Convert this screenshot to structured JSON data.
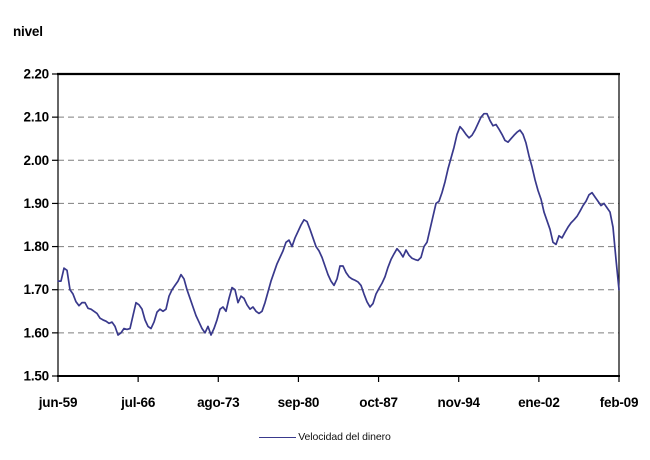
{
  "y_axis_title": "nivel",
  "legend": {
    "label": "Velocidad del dinero"
  },
  "colors": {
    "line": "#39398c",
    "grid": "#7f7f7f",
    "axis": "#000000",
    "background": "#ffffff",
    "text": "#000000"
  },
  "chart_data": {
    "type": "line",
    "title": "",
    "xlabel": "",
    "ylabel": "nivel",
    "ylim": [
      1.5,
      2.2
    ],
    "grid": "horizontal-dashed",
    "legend_position": "bottom-center",
    "x_tick_labels": [
      "jun-59",
      "jul-66",
      "ago-73",
      "sep-80",
      "oct-87",
      "nov-94",
      "ene-02",
      "feb-09"
    ],
    "y_tick_labels": [
      "1.50",
      "1.60",
      "1.70",
      "1.80",
      "1.90",
      "2.00",
      "2.10",
      "2.20"
    ],
    "y_ticks": [
      1.5,
      1.6,
      1.7,
      1.8,
      1.9,
      2.0,
      2.1,
      2.2
    ],
    "series": [
      {
        "name": "Velocidad del dinero",
        "color": "#39398c",
        "values": [
          1.72,
          1.72,
          1.75,
          1.745,
          1.7,
          1.69,
          1.672,
          1.663,
          1.67,
          1.67,
          1.657,
          1.655,
          1.65,
          1.645,
          1.634,
          1.63,
          1.627,
          1.622,
          1.625,
          1.615,
          1.595,
          1.6,
          1.61,
          1.608,
          1.61,
          1.64,
          1.67,
          1.665,
          1.655,
          1.63,
          1.615,
          1.61,
          1.625,
          1.648,
          1.655,
          1.65,
          1.655,
          1.685,
          1.7,
          1.71,
          1.72,
          1.735,
          1.725,
          1.7,
          1.68,
          1.66,
          1.64,
          1.625,
          1.61,
          1.6,
          1.615,
          1.595,
          1.61,
          1.63,
          1.655,
          1.66,
          1.65,
          1.68,
          1.705,
          1.7,
          1.67,
          1.685,
          1.68,
          1.665,
          1.655,
          1.66,
          1.65,
          1.645,
          1.65,
          1.67,
          1.695,
          1.72,
          1.74,
          1.76,
          1.775,
          1.79,
          1.81,
          1.815,
          1.8,
          1.82,
          1.835,
          1.85,
          1.862,
          1.858,
          1.84,
          1.82,
          1.8,
          1.79,
          1.775,
          1.755,
          1.735,
          1.72,
          1.71,
          1.725,
          1.755,
          1.755,
          1.74,
          1.73,
          1.725,
          1.722,
          1.718,
          1.71,
          1.69,
          1.672,
          1.66,
          1.668,
          1.69,
          1.703,
          1.715,
          1.73,
          1.752,
          1.77,
          1.783,
          1.795,
          1.787,
          1.776,
          1.792,
          1.78,
          1.773,
          1.77,
          1.768,
          1.775,
          1.8,
          1.81,
          1.84,
          1.87,
          1.9,
          1.905,
          1.925,
          1.95,
          1.98,
          2.005,
          2.03,
          2.06,
          2.078,
          2.07,
          2.06,
          2.052,
          2.058,
          2.07,
          2.085,
          2.1,
          2.108,
          2.108,
          2.092,
          2.08,
          2.083,
          2.072,
          2.06,
          2.046,
          2.042,
          2.05,
          2.058,
          2.065,
          2.07,
          2.06,
          2.04,
          2.01,
          1.985,
          1.955,
          1.93,
          1.91,
          1.88,
          1.86,
          1.84,
          1.81,
          1.805,
          1.825,
          1.82,
          1.833,
          1.845,
          1.855,
          1.862,
          1.87,
          1.882,
          1.895,
          1.905,
          1.92,
          1.925,
          1.915,
          1.905,
          1.895,
          1.9,
          1.89,
          1.88,
          1.845,
          1.77,
          1.7
        ]
      }
    ]
  }
}
